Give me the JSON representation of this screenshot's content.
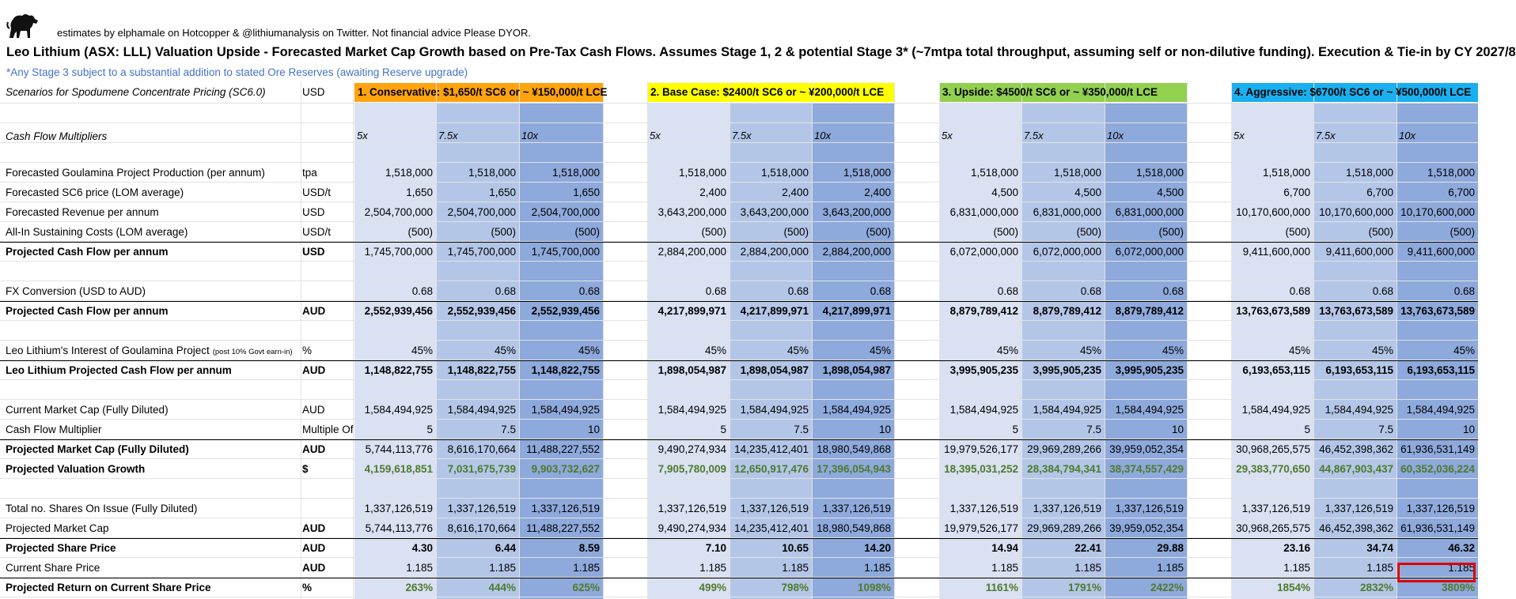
{
  "header": {
    "attribution": "estimates by elphamale on Hotcopper & @lithiumanalysis on Twitter. Not financial advice Please DYOR.",
    "title": "Leo Lithium (ASX: LLL) Valuation Upside - Forecasted Market Cap Growth based on Pre-Tax Cash Flows. Assumes Stage 1, 2 & potential Stage 3* (~7mtpa total throughput, assuming self or non-dilutive funding). Execution & Tie-in by CY 2027/8",
    "note": "*Any Stage 3 subject to a substantial addition to stated Ore Reserves (awaiting Reserve upgrade)"
  },
  "colors": {
    "conservative": "#ffa30f",
    "base_case": "#ffff00",
    "upside": "#92d050",
    "aggressive": "#1ab0f0",
    "col_light": "#d9e1f2",
    "col_mid": "#b4c6e7",
    "col_dark": "#8ea9db",
    "growth_text": "#4e7a2c",
    "highlight_border": "#e00000"
  },
  "scenarios_label": "Scenarios for Spodumene Concentrate Pricing (SC6.0)",
  "scenarios_unit": "USD",
  "scenarios": [
    "1. Conservative: $1,650/t SC6 or ~ ¥150,000/t LCE",
    "2. Base Case: $2400/t SC6 or ~ ¥200,000/t LCE",
    "3. Upside: $4500/t SC6 or ~ ¥350,000/t LCE",
    "4. Aggressive: $6700/t SC6 or ~ ¥500,000/t LCE"
  ],
  "multipliers_label": "Cash Flow Multipliers",
  "multipliers": [
    "5x",
    "7.5x",
    "10x"
  ],
  "rows": [
    {
      "label": "Forecasted Goulamina Project Production (per annum)",
      "unit": "tpa",
      "values": [
        "1,518,000",
        "1,518,000",
        "1,518,000",
        "1,518,000",
        "1,518,000",
        "1,518,000",
        "1,518,000",
        "1,518,000",
        "1,518,000",
        "1,518,000",
        "1,518,000",
        "1,518,000"
      ]
    },
    {
      "label": "Forecasted SC6 price (LOM average)",
      "unit": "USD/t",
      "values": [
        "1,650",
        "1,650",
        "1,650",
        "2,400",
        "2,400",
        "2,400",
        "4,500",
        "4,500",
        "4,500",
        "6,700",
        "6,700",
        "6,700"
      ]
    },
    {
      "label": "Forecasted Revenue per annum",
      "unit": "USD",
      "values": [
        "2,504,700,000",
        "2,504,700,000",
        "2,504,700,000",
        "3,643,200,000",
        "3,643,200,000",
        "3,643,200,000",
        "6,831,000,000",
        "6,831,000,000",
        "6,831,000,000",
        "10,170,600,000",
        "10,170,600,000",
        "10,170,600,000"
      ]
    },
    {
      "label": "All-In Sustaining Costs (LOM average)",
      "unit": "USD/t",
      "values": [
        "(500)",
        "(500)",
        "(500)",
        "(500)",
        "(500)",
        "(500)",
        "(500)",
        "(500)",
        "(500)",
        "(500)",
        "(500)",
        "(500)"
      ]
    },
    {
      "label": "Projected Cash Flow per annum",
      "unit": "USD",
      "bold": true,
      "rule": true,
      "values": [
        "1,745,700,000",
        "1,745,700,000",
        "1,745,700,000",
        "2,884,200,000",
        "2,884,200,000",
        "2,884,200,000",
        "6,072,000,000",
        "6,072,000,000",
        "6,072,000,000",
        "9,411,600,000",
        "9,411,600,000",
        "9,411,600,000"
      ]
    },
    {
      "label": "FX Conversion (USD to AUD)",
      "unit": "",
      "values": [
        "0.68",
        "0.68",
        "0.68",
        "0.68",
        "0.68",
        "0.68",
        "0.68",
        "0.68",
        "0.68",
        "0.68",
        "0.68",
        "0.68"
      ]
    },
    {
      "label": "Projected Cash Flow per annum",
      "unit": "AUD",
      "bold": true,
      "rule": true,
      "boldvals": true,
      "values": [
        "2,552,939,456",
        "2,552,939,456",
        "2,552,939,456",
        "4,217,899,971",
        "4,217,899,971",
        "4,217,899,971",
        "8,879,789,412",
        "8,879,789,412",
        "8,879,789,412",
        "13,763,673,589",
        "13,763,673,589",
        "13,763,673,589"
      ]
    },
    {
      "label": "Leo Lithium's Interest of Goulamina Project",
      "label_small": "(post 10% Govt earn-in)",
      "unit": "%",
      "values": [
        "45%",
        "45%",
        "45%",
        "45%",
        "45%",
        "45%",
        "45%",
        "45%",
        "45%",
        "45%",
        "45%",
        "45%"
      ]
    },
    {
      "label": "Leo Lithium Projected Cash Flow per annum",
      "unit": "AUD",
      "bold": true,
      "rule": true,
      "boldvals": true,
      "values": [
        "1,148,822,755",
        "1,148,822,755",
        "1,148,822,755",
        "1,898,054,987",
        "1,898,054,987",
        "1,898,054,987",
        "3,995,905,235",
        "3,995,905,235",
        "3,995,905,235",
        "6,193,653,115",
        "6,193,653,115",
        "6,193,653,115"
      ]
    },
    {
      "label": "Current Market Cap (Fully Diluted)",
      "unit": "AUD",
      "values": [
        "1,584,494,925",
        "1,584,494,925",
        "1,584,494,925",
        "1,584,494,925",
        "1,584,494,925",
        "1,584,494,925",
        "1,584,494,925",
        "1,584,494,925",
        "1,584,494,925",
        "1,584,494,925",
        "1,584,494,925",
        "1,584,494,925"
      ]
    },
    {
      "label": "Cash Flow Multiplier",
      "unit": "Multiple Of",
      "values": [
        "5",
        "7.5",
        "10",
        "5",
        "7.5",
        "10",
        "5",
        "7.5",
        "10",
        "5",
        "7.5",
        "10"
      ]
    },
    {
      "label": "Projected Market Cap (Fully Diluted)",
      "unit": "AUD",
      "bold": true,
      "rule": true,
      "values": [
        "5,744,113,776",
        "8,616,170,664",
        "11,488,227,552",
        "9,490,274,934",
        "14,235,412,401",
        "18,980,549,868",
        "19,979,526,177",
        "29,969,289,266",
        "39,959,052,354",
        "30,968,265,575",
        "46,452,398,362",
        "61,936,531,149"
      ]
    },
    {
      "label": "Projected Valuation Growth",
      "unit": "$",
      "bold": true,
      "green": true,
      "values": [
        "4,159,618,851",
        "7,031,675,739",
        "9,903,732,627",
        "7,905,780,009",
        "12,650,917,476",
        "17,396,054,943",
        "18,395,031,252",
        "28,384,794,341",
        "38,374,557,429",
        "29,383,770,650",
        "44,867,903,437",
        "60,352,036,224"
      ]
    },
    {
      "label": "Total no. Shares On Issue (Fully Diluted)",
      "unit": "",
      "values": [
        "1,337,126,519",
        "1,337,126,519",
        "1,337,126,519",
        "1,337,126,519",
        "1,337,126,519",
        "1,337,126,519",
        "1,337,126,519",
        "1,337,126,519",
        "1,337,126,519",
        "1,337,126,519",
        "1,337,126,519",
        "1,337,126,519"
      ]
    },
    {
      "label": "Projected Market Cap",
      "unit": "AUD",
      "unitbold": true,
      "values": [
        "5,744,113,776",
        "8,616,170,664",
        "11,488,227,552",
        "9,490,274,934",
        "14,235,412,401",
        "18,980,549,868",
        "19,979,526,177",
        "29,969,289,266",
        "39,959,052,354",
        "30,968,265,575",
        "46,452,398,362",
        "61,936,531,149"
      ]
    },
    {
      "label": "Projected Share Price",
      "unit": "AUD",
      "bold": true,
      "rule": true,
      "boldvals": true,
      "values": [
        "4.30",
        "6.44",
        "8.59",
        "7.10",
        "10.65",
        "14.20",
        "14.94",
        "22.41",
        "29.88",
        "23.16",
        "34.74",
        "46.32"
      ]
    },
    {
      "label": "Current Share Price",
      "unit": "AUD",
      "unitbold": true,
      "values": [
        "1.185",
        "1.185",
        "1.185",
        "1.185",
        "1.185",
        "1.185",
        "1.185",
        "1.185",
        "1.185",
        "1.185",
        "1.185",
        "1.185"
      ]
    },
    {
      "label": "Projected Return on Current Share Price",
      "unit": "%",
      "bold": true,
      "rule": true,
      "green": true,
      "values": [
        "263%",
        "444%",
        "625%",
        "499%",
        "798%",
        "1098%",
        "1161%",
        "1791%",
        "2422%",
        "1854%",
        "2832%",
        "3809%"
      ]
    }
  ]
}
